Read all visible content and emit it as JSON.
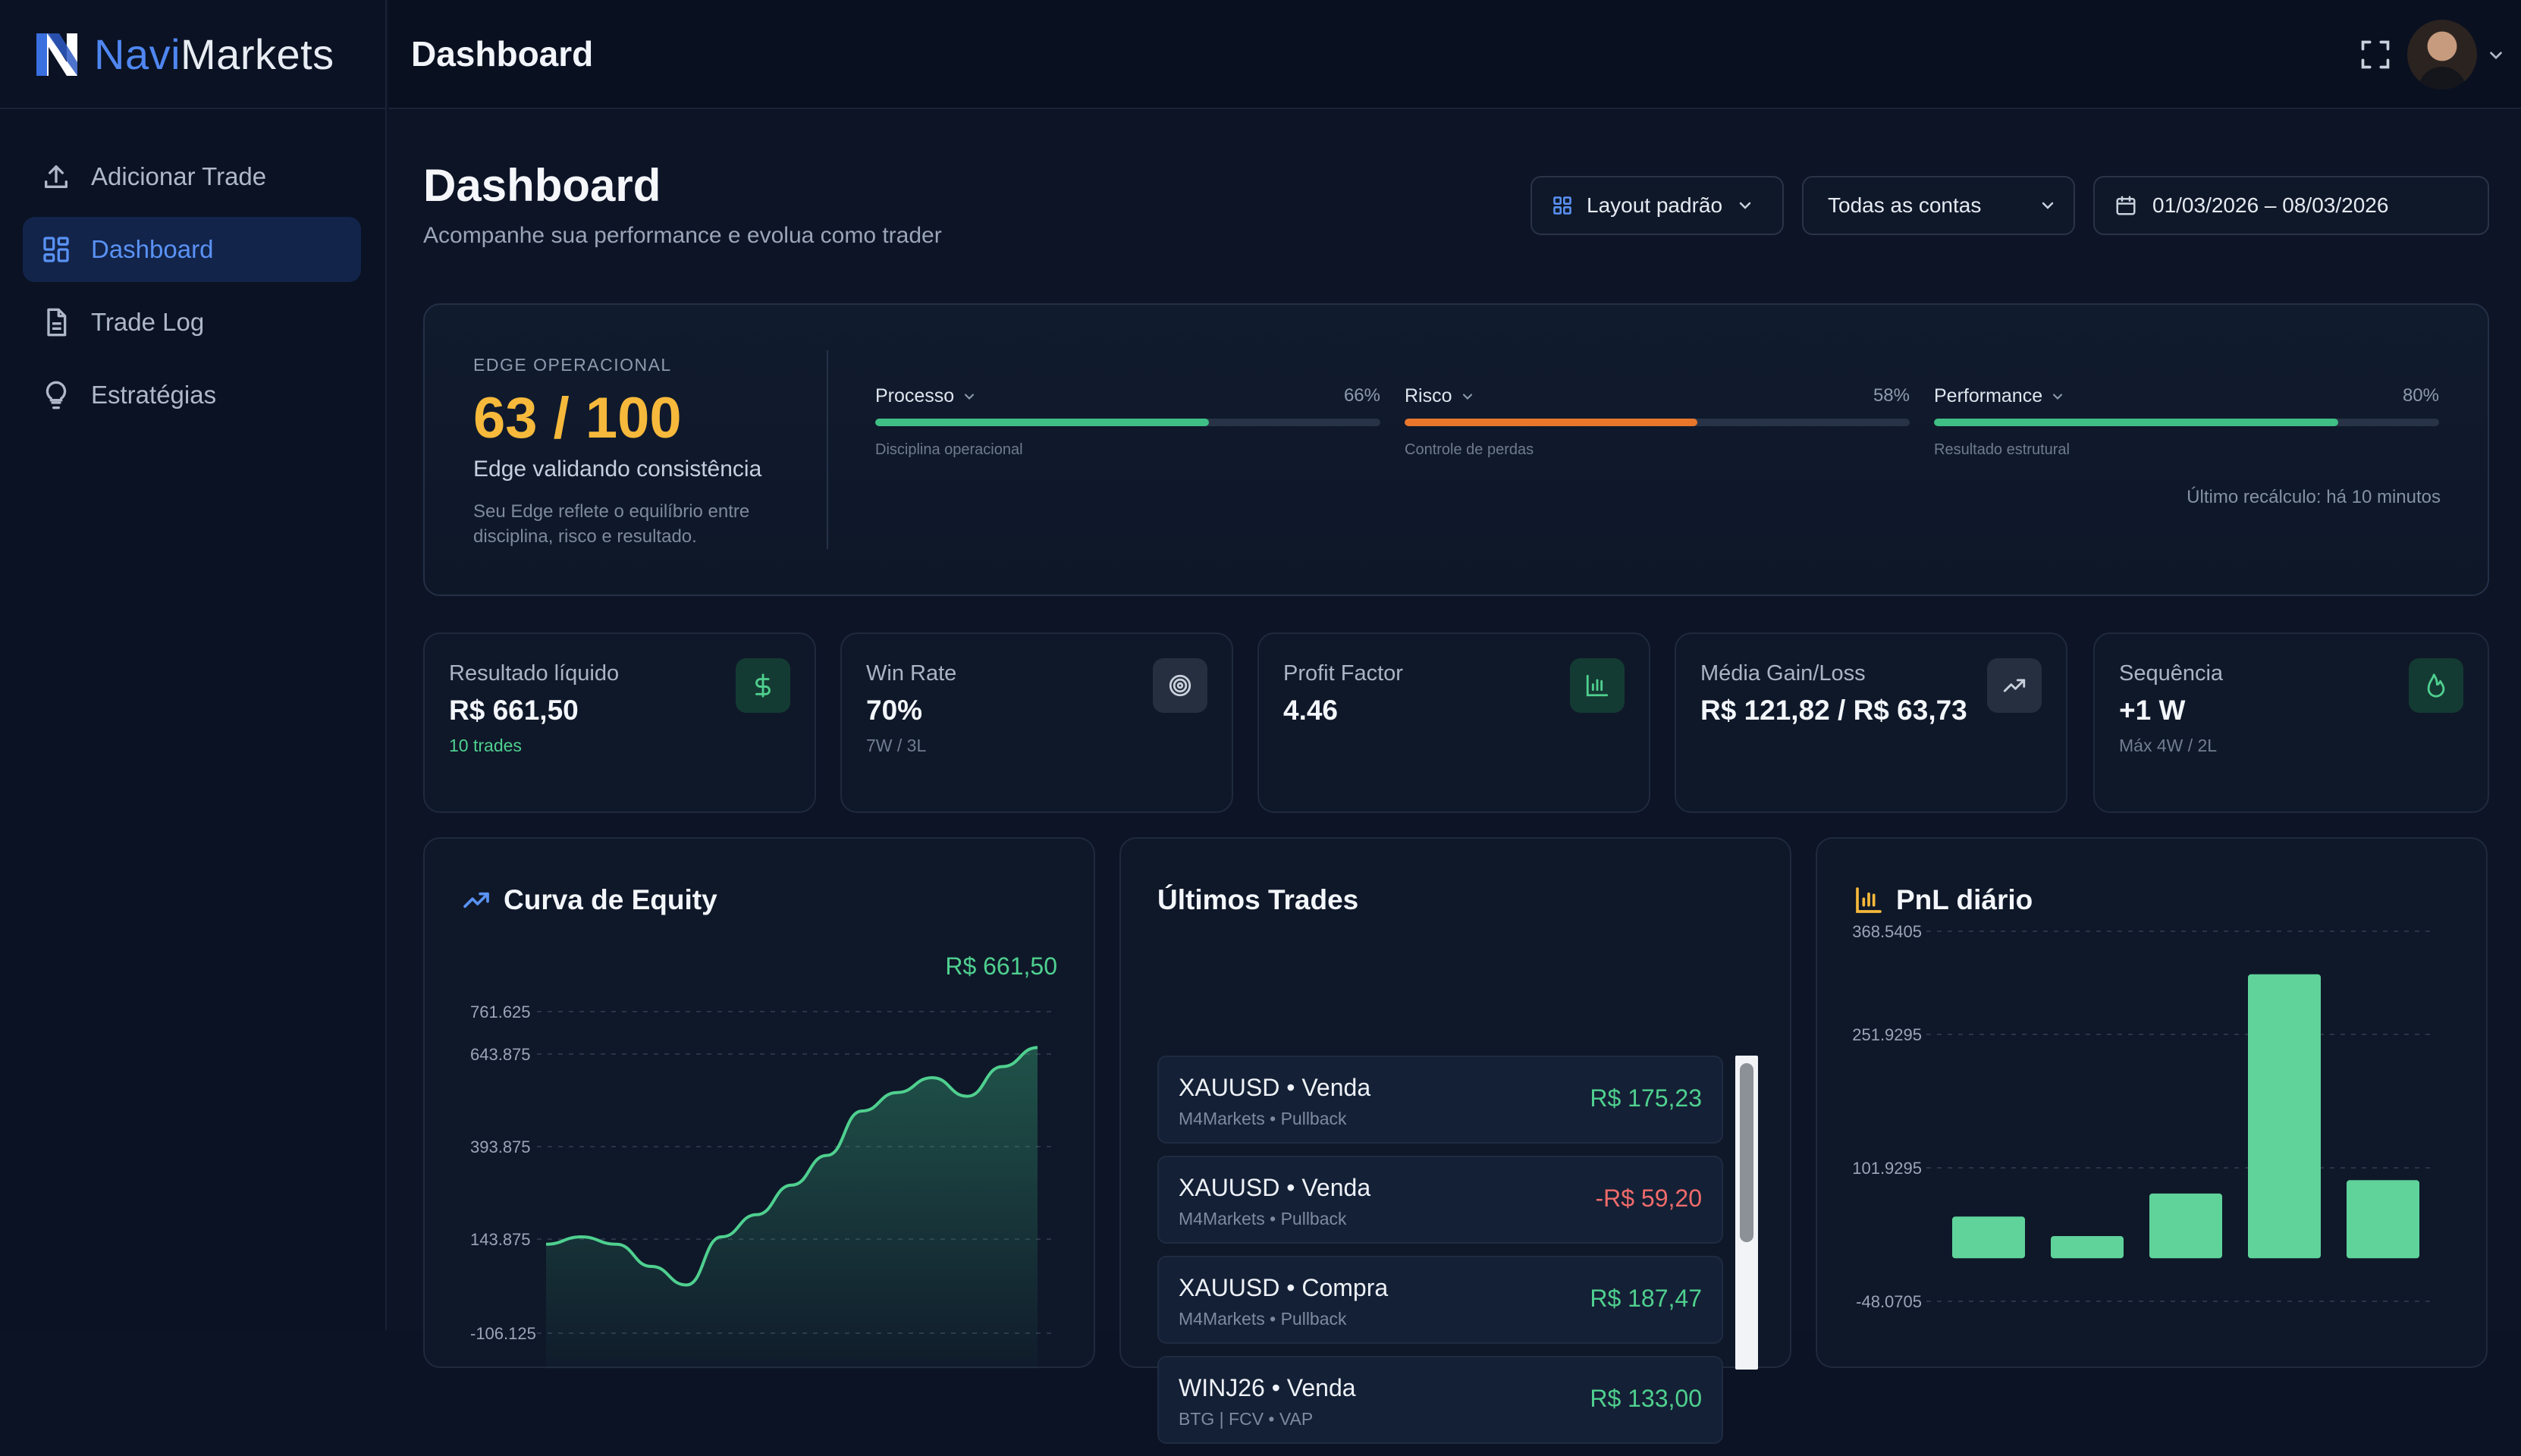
{
  "app": {
    "logo_part1": "Navi",
    "logo_part2": "Markets"
  },
  "sidebar": {
    "items": [
      {
        "label": "Adicionar Trade",
        "icon": "upload-icon"
      },
      {
        "label": "Dashboard",
        "icon": "dashboard-grid-icon",
        "active": true
      },
      {
        "label": "Trade Log",
        "icon": "document-icon"
      },
      {
        "label": "Estratégias",
        "icon": "lightbulb-icon"
      }
    ]
  },
  "topbar": {
    "title": "Dashboard"
  },
  "header": {
    "title": "Dashboard",
    "subtitle": "Acompanhe sua performance e evolua como trader",
    "layout_select": "Layout padrão",
    "accounts_select": "Todas as contas",
    "date_range": "01/03/2026 – 08/03/2026"
  },
  "edge": {
    "label": "EDGE OPERACIONAL",
    "score": "63 / 100",
    "status": "Edge validando consistência",
    "description": "Seu Edge reflete o equilíbrio entre disciplina, risco e resultado.",
    "metrics": [
      {
        "name": "Processo",
        "percent_label": "66%",
        "value": 66,
        "caption": "Disciplina operacional",
        "color": "#3fbf85"
      },
      {
        "name": "Risco",
        "percent_label": "58%",
        "value": 58,
        "caption": "Controle de perdas",
        "color": "#e8772c"
      },
      {
        "name": "Performance",
        "percent_label": "80%",
        "value": 80,
        "caption": "Resultado estrutural",
        "color": "#3fbf85"
      }
    ],
    "recalc": "Último recálculo: há 10 minutos"
  },
  "stats": [
    {
      "label": "Resultado líquido",
      "value": "R$ 661,50",
      "sub": "10 trades",
      "icon": "dollar-icon"
    },
    {
      "label": "Win Rate",
      "value": "70%",
      "sub": "7W / 3L",
      "icon": "target-icon"
    },
    {
      "label": "Profit Factor",
      "value": "4.46",
      "sub": "",
      "icon": "bar-chart-icon"
    },
    {
      "label": "Média Gain/Loss",
      "value": "R$ 121,82 / R$ 63,73",
      "sub": "",
      "icon": "trend-up-icon"
    },
    {
      "label": "Sequência",
      "value": "+1 W",
      "sub": "Máx 4W / 2L",
      "icon": "flame-icon"
    }
  ],
  "equity": {
    "title": "Curva de Equity",
    "total": "R$ 661,50",
    "y_ticks": [
      "761.625",
      "643.875",
      "393.875",
      "143.875",
      "-106.125"
    ]
  },
  "trades": {
    "title": "Últimos Trades",
    "items": [
      {
        "title": "XAUUSD • Venda",
        "sub": "M4Markets • Pullback",
        "value": "R$ 175,23",
        "positive": true
      },
      {
        "title": "XAUUSD • Venda",
        "sub": "M4Markets • Pullback",
        "value": "-R$ 59,20",
        "positive": false
      },
      {
        "title": "XAUUSD • Compra",
        "sub": "M4Markets • Pullback",
        "value": "R$ 187,47",
        "positive": true
      },
      {
        "title": "WINJ26 • Venda",
        "sub": "BTG | FCV • VAP",
        "value": "R$ 133,00",
        "positive": true
      }
    ]
  },
  "pnl": {
    "title": "PnL diário",
    "y_ticks": [
      "368.5405",
      "251.9295",
      "101.9295",
      "-48.0705"
    ]
  },
  "chart_data": [
    {
      "type": "area",
      "title": "Curva de Equity",
      "y_ticks": [
        761.625,
        643.875,
        393.875,
        143.875,
        -106.125
      ],
      "ylim": [
        -106.125,
        761.625
      ],
      "y": [
        130,
        150,
        130,
        70,
        20,
        150,
        210,
        290,
        370,
        490,
        540,
        580,
        530,
        610,
        661.5
      ]
    },
    {
      "type": "bar",
      "title": "PnL diário",
      "y_ticks": [
        368.5405,
        251.9295,
        101.9295,
        -48.0705
      ],
      "ylim": [
        -48.0705,
        368.5405
      ],
      "values": [
        47,
        25,
        73,
        320,
        88
      ],
      "color": "#5fd39a"
    }
  ]
}
